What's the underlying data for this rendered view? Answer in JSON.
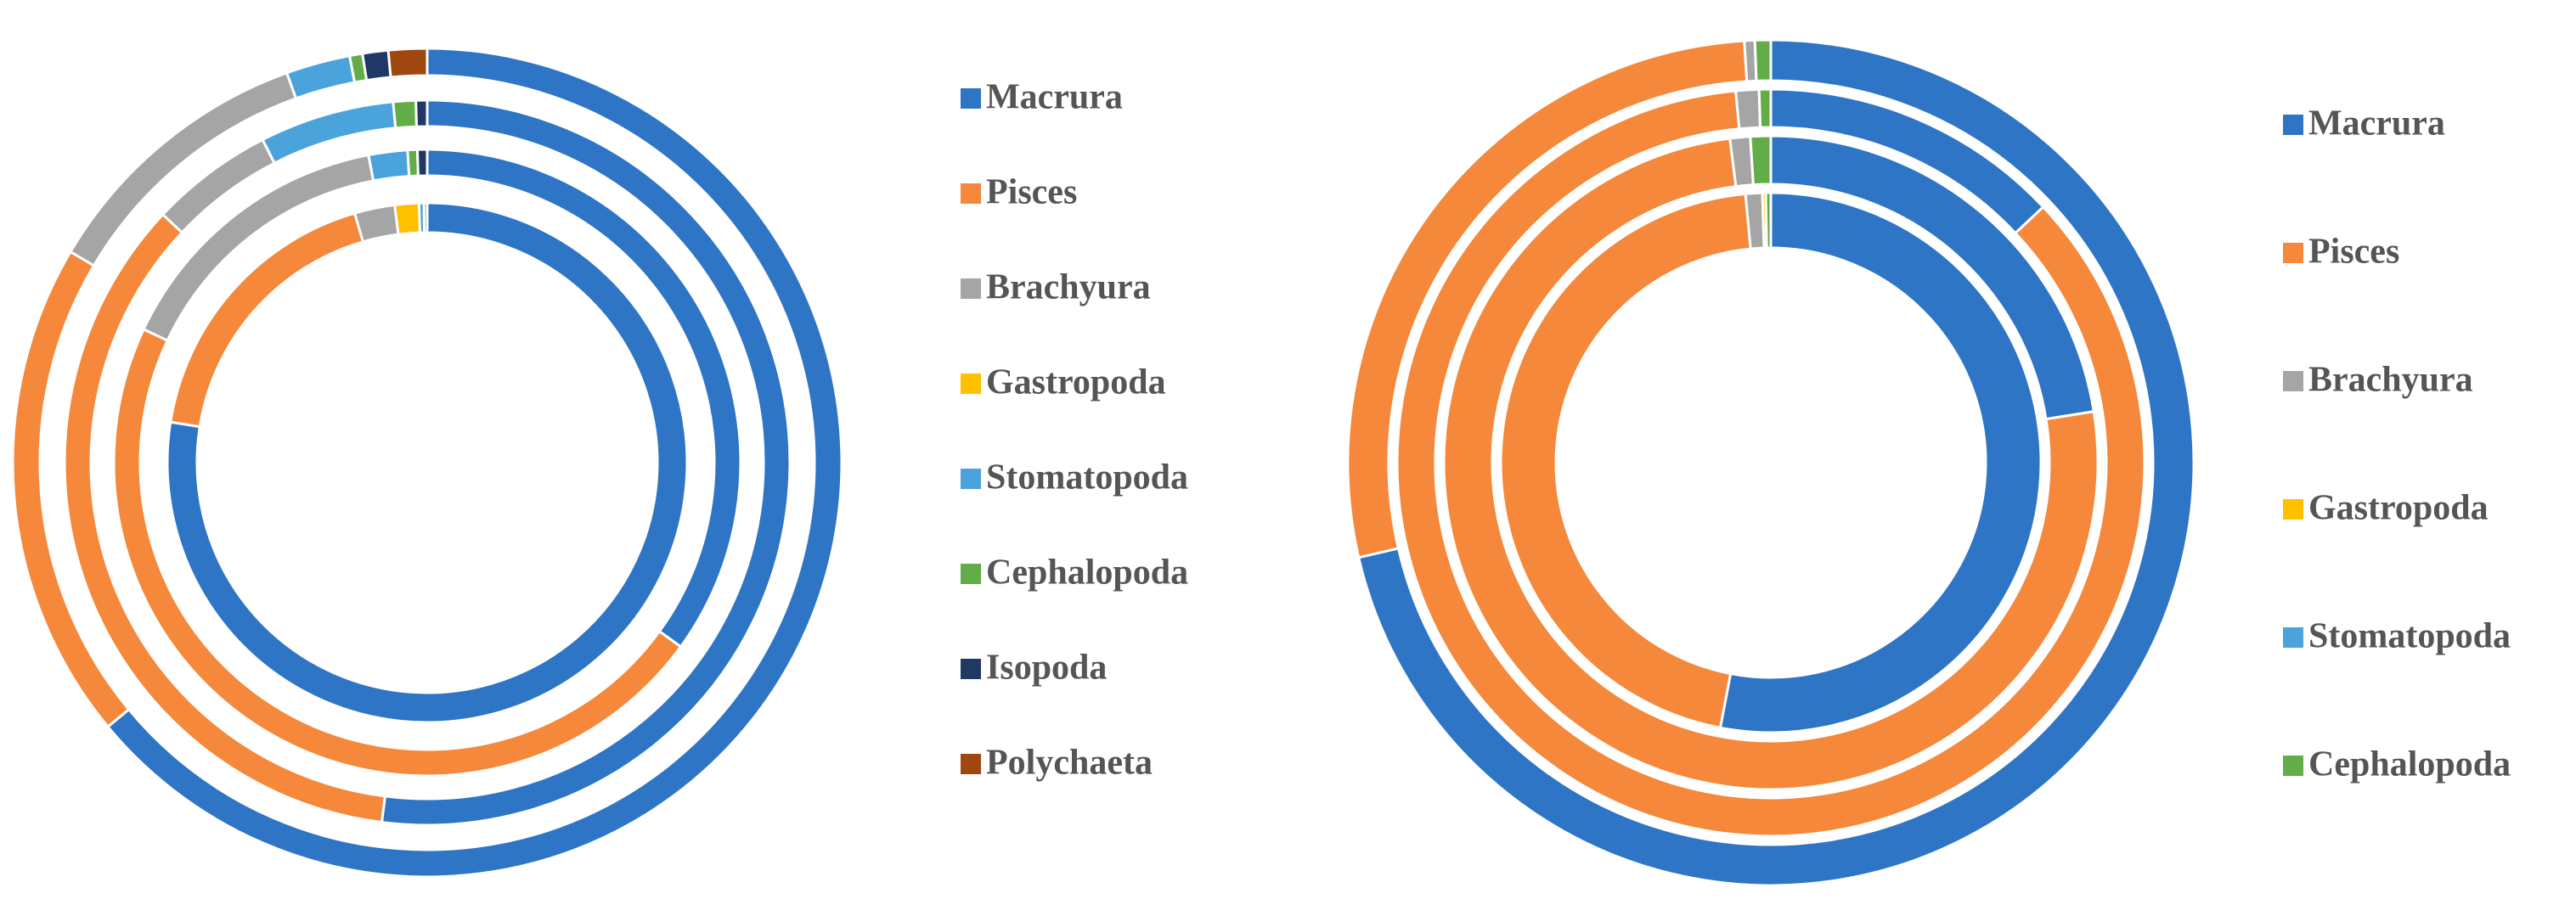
{
  "chart_data": [
    {
      "type": "donut",
      "categories": [
        "Macrura",
        "Pisces",
        "Brachyura",
        "Gastropoda",
        "Stomatopoda",
        "Cephalopoda",
        "Isopoda",
        "Polychaeta"
      ],
      "colors": [
        "#2e75c6",
        "#f5883a",
        "#a5a5a5",
        "#ffc000",
        "#4ba3db",
        "#62ad47",
        "#203864",
        "#a0470f"
      ],
      "rings": [
        {
          "values": [
            77.5,
            18,
            2.5,
            1.5,
            0.3,
            0.2,
            0,
            0
          ]
        },
        {
          "values": [
            35,
            47,
            15,
            0,
            2,
            0.5,
            0.5,
            0
          ]
        },
        {
          "values": [
            52,
            35,
            5.5,
            0,
            6,
            1,
            0.5,
            0
          ]
        },
        {
          "values": [
            64,
            19.5,
            11,
            0,
            2.5,
            0.5,
            1,
            1.5
          ]
        }
      ]
    },
    {
      "type": "donut",
      "categories": [
        "Macrura",
        "Pisces",
        "Brachyura",
        "Gastropoda",
        "Stomatopoda",
        "Cephalopoda"
      ],
      "colors": [
        "#2e75c6",
        "#f5883a",
        "#a5a5a5",
        "#ffc000",
        "#4ba3db",
        "#62ad47"
      ],
      "rings": [
        {
          "values": [
            53,
            45.5,
            1,
            0.2,
            0,
            0.3
          ]
        },
        {
          "values": [
            22.5,
            75.5,
            1,
            0,
            0,
            1
          ]
        },
        {
          "values": [
            13,
            85.5,
            1,
            0,
            0,
            0.5
          ]
        },
        {
          "values": [
            71.4,
            27.6,
            0.4,
            0,
            0,
            0.6
          ]
        }
      ]
    }
  ]
}
